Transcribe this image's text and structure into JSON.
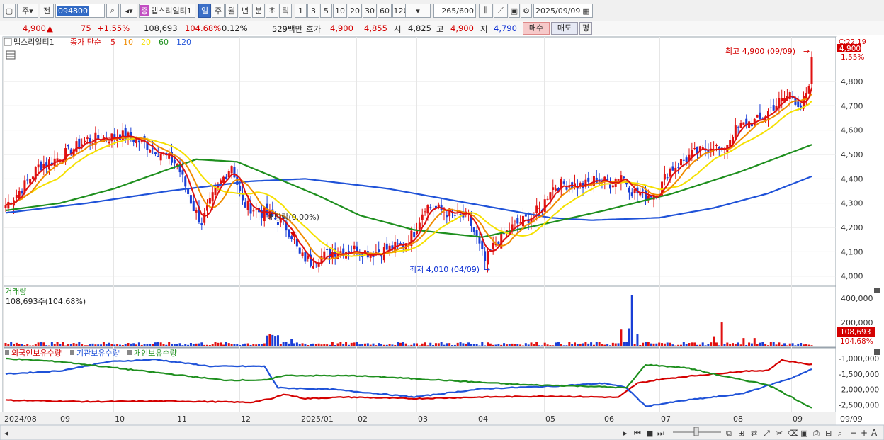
{
  "toolbar": {
    "type_select": "주",
    "prev_label": "전",
    "code_value": "094800",
    "stock_name_badge": "증",
    "stock_name": "맵스리얼티1",
    "periods": [
      "일",
      "주",
      "월",
      "년",
      "분",
      "초",
      "틱"
    ],
    "active_period": "일",
    "intervals": [
      "1",
      "3",
      "5",
      "10",
      "20",
      "30",
      "60",
      "120"
    ],
    "count_value": "265",
    "count_total": "/600",
    "date_value": "2025/09/09"
  },
  "quote": {
    "price": "4,900",
    "change": "75",
    "change_pct": "+1.55%",
    "volume": "108,693",
    "volume_ratio": "104.68%",
    "turnover": "0.12%",
    "amount": "529백만",
    "bidask_label": "호가",
    "ask": "4,900",
    "bid": "4,855",
    "open_label": "시",
    "open": "4,825",
    "high_label": "고",
    "high": "4,900",
    "low_label": "저",
    "low": "4,790",
    "buy_label": "매수",
    "sell_label": "매도",
    "avg_label": "평"
  },
  "price_panel": {
    "legend_name": "맵스리얼티1",
    "legend_series": "종가 단순",
    "ma_labels": [
      "5",
      "10",
      "20",
      "60",
      "120"
    ],
    "ma_colors": [
      "#dd1111",
      "#f08c00",
      "#f5e000",
      "#1e8f1e",
      "#1f52d8"
    ],
    "y_ticks": [
      "4,800",
      "4,700",
      "4,600",
      "4,500",
      "4,400",
      "4,300",
      "4,200",
      "4,100",
      "4,000"
    ],
    "cur_price_tag": "4,900",
    "cur_pct_tag": "1.55%",
    "corner_label": "C:22.19",
    "high_annotation": "최고 4,900 (09/09)",
    "low_annotation": "최저 4,010 (04/09)",
    "dividend_annotation": "배당락(0.00%)"
  },
  "volume_panel": {
    "title": "거래량",
    "subtitle": "108,693주(104.68%)",
    "y_ticks": [
      "400,000",
      "200,000"
    ],
    "cur_tag": "108,693",
    "cur_pct": "104.68%"
  },
  "holdings_panel": {
    "series": [
      {
        "name": "외국인보유수량",
        "color": "#d40000"
      },
      {
        "name": "기관보유수량",
        "color": "#1f52d8"
      },
      {
        "name": "개인보유수량",
        "color": "#1e8f1e"
      }
    ],
    "y_ticks": [
      "-1,000,000",
      "-1,500,000",
      "-2,000,000",
      "-2,500,000"
    ]
  },
  "x_axis": {
    "labels": [
      "2024/08",
      "09",
      "10",
      "11",
      "12",
      "2025/01",
      "02",
      "03",
      "04",
      "05",
      "06",
      "07",
      "08",
      "09"
    ],
    "right_label": "09/09"
  },
  "chart_data": {
    "type": "candlestick",
    "price_range": [
      3970,
      4960
    ],
    "price_anchors": [
      [
        0,
        4290
      ],
      [
        6,
        4360
      ],
      [
        12,
        4450
      ],
      [
        20,
        4490
      ],
      [
        30,
        4560
      ],
      [
        38,
        4570
      ],
      [
        42,
        4580
      ],
      [
        48,
        4560
      ],
      [
        55,
        4520
      ],
      [
        63,
        4460
      ],
      [
        69,
        4280
      ],
      [
        72,
        4220
      ],
      [
        77,
        4350
      ],
      [
        83,
        4460
      ],
      [
        87,
        4300
      ],
      [
        92,
        4270
      ],
      [
        97,
        4250
      ],
      [
        102,
        4215
      ],
      [
        105,
        4170
      ],
      [
        108,
        4085
      ],
      [
        112,
        4060
      ],
      [
        120,
        4100
      ],
      [
        128,
        4110
      ],
      [
        134,
        4095
      ],
      [
        140,
        4110
      ],
      [
        146,
        4130
      ],
      [
        150,
        4180
      ],
      [
        154,
        4290
      ],
      [
        160,
        4270
      ],
      [
        165,
        4250
      ],
      [
        170,
        4240
      ],
      [
        173,
        4150
      ],
      [
        176,
        4060
      ],
      [
        179,
        4120
      ],
      [
        183,
        4170
      ],
      [
        187,
        4210
      ],
      [
        192,
        4240
      ],
      [
        197,
        4280
      ],
      [
        200,
        4360
      ],
      [
        205,
        4380
      ],
      [
        212,
        4370
      ],
      [
        217,
        4400
      ],
      [
        222,
        4380
      ],
      [
        226,
        4420
      ],
      [
        230,
        4350
      ],
      [
        235,
        4330
      ],
      [
        240,
        4350
      ],
      [
        243,
        4430
      ],
      [
        247,
        4460
      ],
      [
        252,
        4500
      ],
      [
        257,
        4520
      ],
      [
        260,
        4540
      ],
      [
        263,
        4500
      ],
      [
        267,
        4590
      ],
      [
        272,
        4630
      ],
      [
        277,
        4640
      ],
      [
        282,
        4700
      ],
      [
        285,
        4720
      ],
      [
        288,
        4750
      ],
      [
        292,
        4700
      ],
      [
        295,
        4760
      ],
      [
        296,
        4900
      ]
    ],
    "ma60_anchors": [
      [
        0,
        4270
      ],
      [
        20,
        4300
      ],
      [
        40,
        4360
      ],
      [
        60,
        4440
      ],
      [
        70,
        4480
      ],
      [
        85,
        4470
      ],
      [
        100,
        4400
      ],
      [
        115,
        4330
      ],
      [
        130,
        4250
      ],
      [
        150,
        4190
      ],
      [
        175,
        4160
      ],
      [
        200,
        4220
      ],
      [
        220,
        4270
      ],
      [
        245,
        4340
      ],
      [
        270,
        4430
      ],
      [
        296,
        4540
      ]
    ],
    "ma120_anchors": [
      [
        0,
        4260
      ],
      [
        30,
        4300
      ],
      [
        60,
        4350
      ],
      [
        90,
        4390
      ],
      [
        110,
        4400
      ],
      [
        140,
        4360
      ],
      [
        170,
        4300
      ],
      [
        190,
        4260
      ],
      [
        200,
        4240
      ],
      [
        215,
        4230
      ],
      [
        240,
        4240
      ],
      [
        260,
        4280
      ],
      [
        280,
        4340
      ],
      [
        296,
        4410
      ]
    ],
    "volume_range": [
      0,
      430000
    ],
    "volume_spikes": [
      [
        96,
        90000
      ],
      [
        97,
        100000
      ],
      [
        98,
        95000
      ],
      [
        99,
        88000
      ],
      [
        100,
        93000
      ],
      [
        105,
        60000
      ],
      [
        226,
        140000
      ],
      [
        229,
        150000
      ],
      [
        230,
        430000
      ],
      [
        232,
        100000
      ],
      [
        260,
        85000
      ],
      [
        263,
        200000
      ],
      [
        271,
        70000
      ],
      [
        275,
        70000
      ]
    ],
    "holdings_range": [
      -2700000,
      -700000
    ],
    "foreign_anchors": [
      [
        0,
        -2350000
      ],
      [
        30,
        -2400000
      ],
      [
        60,
        -2380000
      ],
      [
        90,
        -2420000
      ],
      [
        98,
        -2300000
      ],
      [
        102,
        -2150000
      ],
      [
        110,
        -2300000
      ],
      [
        125,
        -2250000
      ],
      [
        150,
        -2300000
      ],
      [
        175,
        -2250000
      ],
      [
        200,
        -2220000
      ],
      [
        225,
        -2260000
      ],
      [
        232,
        -1800000
      ],
      [
        240,
        -1680000
      ],
      [
        250,
        -1580000
      ],
      [
        270,
        -1420000
      ],
      [
        280,
        -1380000
      ],
      [
        285,
        -1050000
      ],
      [
        296,
        -1200000
      ]
    ],
    "institution_anchors": [
      [
        0,
        -1500000
      ],
      [
        20,
        -1400000
      ],
      [
        38,
        -1100000
      ],
      [
        55,
        -1030000
      ],
      [
        75,
        -1250000
      ],
      [
        95,
        -1250000
      ],
      [
        100,
        -1950000
      ],
      [
        120,
        -2000000
      ],
      [
        150,
        -2250000
      ],
      [
        175,
        -1980000
      ],
      [
        200,
        -1900000
      ],
      [
        220,
        -1800000
      ],
      [
        228,
        -1950000
      ],
      [
        235,
        -2550000
      ],
      [
        250,
        -2350000
      ],
      [
        270,
        -2150000
      ],
      [
        288,
        -1650000
      ],
      [
        296,
        -1350000
      ]
    ],
    "individual_anchors": [
      [
        0,
        -1000000
      ],
      [
        20,
        -1100000
      ],
      [
        40,
        -1300000
      ],
      [
        60,
        -1500000
      ],
      [
        80,
        -1700000
      ],
      [
        96,
        -1700000
      ],
      [
        102,
        -1550000
      ],
      [
        130,
        -1560000
      ],
      [
        160,
        -1700000
      ],
      [
        190,
        -1850000
      ],
      [
        215,
        -1900000
      ],
      [
        228,
        -1950000
      ],
      [
        235,
        -1200000
      ],
      [
        250,
        -1300000
      ],
      [
        265,
        -1600000
      ],
      [
        280,
        -1850000
      ],
      [
        296,
        -2600000
      ]
    ]
  }
}
